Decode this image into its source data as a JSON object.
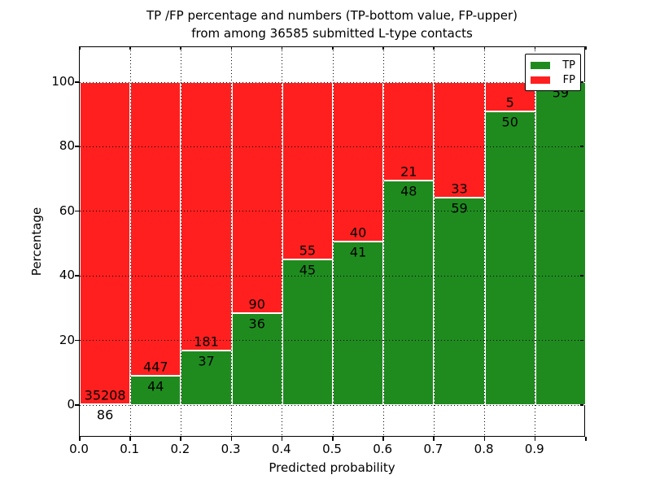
{
  "page": {
    "background": "#ffffff"
  },
  "chart_data": {
    "type": "bar",
    "stacked": true,
    "orientation": "vertical",
    "title_line1": "TP /FP percentage and numbers (TP-bottom value, FP-upper)",
    "title_line2": "from among 36585 submitted L-type contacts",
    "xlabel": "Predicted probability",
    "ylabel": "Percentage",
    "xticks": [
      "0.0",
      "0.1",
      "0.2",
      "0.3",
      "0.4",
      "0.5",
      "0.6",
      "0.7",
      "0.8",
      "0.9"
    ],
    "yticks": [
      "0",
      "20",
      "40",
      "60",
      "80",
      "100"
    ],
    "xlim": [
      0.0,
      1.0
    ],
    "ylim": [
      -10,
      110
    ],
    "bin_edges": [
      0.0,
      0.1,
      0.2,
      0.3,
      0.4,
      0.5,
      0.6,
      0.7,
      0.8,
      0.9,
      1.0
    ],
    "grid": true,
    "grid_style": "dotted",
    "bar_edge_color": "#ffffff",
    "value_note": "bars show TP and FP as percentage of each bin, stacked to 100%; numeric labels are raw counts (TP below boundary, FP above)",
    "series": [
      {
        "name": "TP",
        "color": "#1F8B1F",
        "counts": [
          86,
          44,
          37,
          36,
          45,
          41,
          48,
          59,
          50,
          59
        ]
      },
      {
        "name": "FP",
        "color": "#FF1F1F",
        "counts": [
          35208,
          447,
          181,
          90,
          55,
          40,
          21,
          33,
          5,
          0
        ]
      }
    ],
    "legend": {
      "position": "upper right",
      "entries": [
        {
          "label": "TP",
          "color": "#1F8B1F"
        },
        {
          "label": "FP",
          "color": "#FF1F1F"
        }
      ]
    }
  }
}
